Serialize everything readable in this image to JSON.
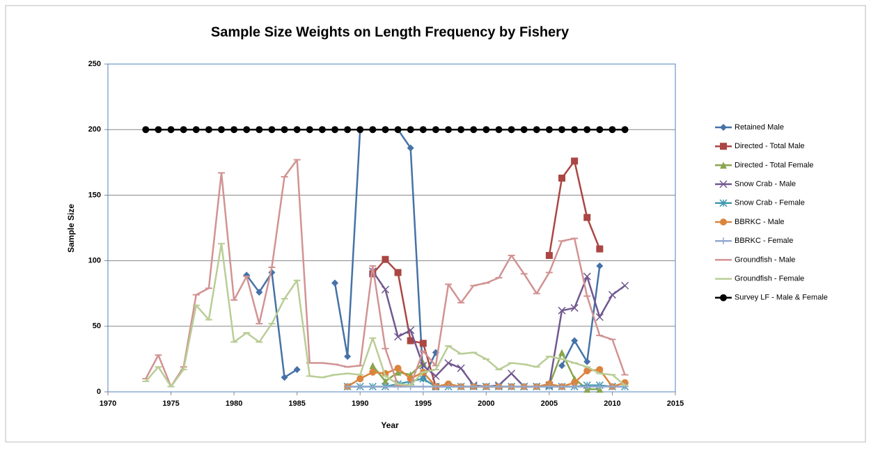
{
  "chart_data": {
    "type": "line",
    "title": "Sample Size Weights on Length Frequency by Fishery",
    "x_label": "Year",
    "y_label": "Sample Size",
    "xlim": [
      1970,
      2015
    ],
    "xticks": [
      1970,
      1975,
      1980,
      1985,
      1990,
      1995,
      2000,
      2005,
      2010,
      2015
    ],
    "ylim": [
      0,
      250
    ],
    "yticks": [
      0,
      50,
      100,
      150,
      200,
      250
    ],
    "grid": true,
    "legend": "right",
    "x": [
      1973,
      1974,
      1975,
      1976,
      1977,
      1978,
      1979,
      1980,
      1981,
      1982,
      1983,
      1984,
      1985,
      1986,
      1987,
      1988,
      1989,
      1990,
      1991,
      1992,
      1993,
      1994,
      1995,
      1996,
      1997,
      1998,
      1999,
      2000,
      2001,
      2002,
      2003,
      2004,
      2005,
      2006,
      2007,
      2008,
      2009,
      2010,
      2011
    ],
    "series": [
      {
        "name": "Retained Male",
        "color": "#4572a7",
        "marker": "diamond",
        "values": [
          null,
          null,
          null,
          null,
          null,
          null,
          null,
          null,
          89,
          76,
          91,
          11,
          17,
          null,
          null,
          83,
          27,
          200,
          200,
          200,
          200,
          186,
          10,
          30,
          null,
          null,
          null,
          null,
          null,
          null,
          null,
          null,
          null,
          20,
          39,
          23,
          96,
          null,
          null
        ]
      },
      {
        "name": "Directed - Total  Male",
        "color": "#aa4643",
        "marker": "square",
        "values": [
          null,
          null,
          null,
          null,
          null,
          null,
          null,
          null,
          null,
          null,
          null,
          null,
          null,
          null,
          null,
          null,
          null,
          null,
          90,
          101,
          91,
          39,
          37,
          4,
          null,
          null,
          null,
          null,
          null,
          null,
          null,
          null,
          104,
          163,
          176,
          133,
          109,
          null,
          null
        ]
      },
      {
        "name": "Directed - Total  Female",
        "color": "#89a54e",
        "marker": "triangle",
        "values": [
          null,
          null,
          null,
          null,
          null,
          null,
          null,
          null,
          null,
          null,
          null,
          null,
          null,
          null,
          null,
          null,
          null,
          null,
          20,
          8,
          15,
          13,
          22,
          null,
          null,
          null,
          null,
          null,
          null,
          null,
          null,
          null,
          5,
          30,
          10,
          2,
          2,
          null,
          null
        ]
      },
      {
        "name": "Snow Crab - Male",
        "color": "#71588f",
        "marker": "x",
        "values": [
          null,
          null,
          null,
          null,
          null,
          null,
          null,
          null,
          null,
          null,
          null,
          null,
          null,
          null,
          null,
          null,
          null,
          null,
          92,
          78,
          42,
          47,
          20,
          12,
          22,
          18,
          5,
          4,
          5,
          14,
          4,
          4,
          5,
          62,
          64,
          88,
          57,
          74,
          81
        ]
      },
      {
        "name": "Snow Crab - Female",
        "color": "#4198af",
        "marker": "star",
        "values": [
          null,
          null,
          null,
          null,
          null,
          null,
          null,
          null,
          null,
          null,
          null,
          null,
          null,
          null,
          null,
          null,
          4,
          4,
          4,
          4,
          6,
          8,
          10,
          4,
          4,
          4,
          4,
          4,
          4,
          4,
          4,
          4,
          4,
          4,
          4,
          5,
          5,
          4,
          4
        ]
      },
      {
        "name": "BBRKC - Male",
        "color": "#db843d",
        "marker": "circle",
        "values": [
          null,
          null,
          null,
          null,
          null,
          null,
          null,
          null,
          null,
          null,
          null,
          null,
          null,
          null,
          null,
          null,
          4,
          10,
          15,
          14,
          18,
          10,
          15,
          4,
          6,
          4,
          4,
          4,
          4,
          4,
          4,
          4,
          6,
          4,
          7,
          16,
          17,
          4,
          7
        ]
      },
      {
        "name": "BBRKC - Female",
        "color": "#93a9cf",
        "marker": "plus",
        "values": [
          null,
          null,
          null,
          null,
          null,
          null,
          null,
          null,
          null,
          null,
          null,
          null,
          null,
          null,
          null,
          null,
          4,
          4,
          4,
          4,
          4,
          4,
          4,
          4,
          4,
          4,
          4,
          4,
          4,
          4,
          4,
          4,
          4,
          4,
          4,
          4,
          4,
          4,
          4
        ]
      },
      {
        "name": "Groundfish - Male",
        "color": "#d19392",
        "marker": "dash",
        "values": [
          10,
          28,
          4,
          19,
          74,
          79,
          167,
          70,
          88,
          52,
          95,
          164,
          177,
          22,
          22,
          21,
          19,
          20,
          96,
          33,
          5,
          5,
          31,
          20,
          82,
          68,
          81,
          83,
          87,
          104,
          90,
          75,
          91,
          115,
          117,
          73,
          43,
          40,
          13
        ]
      },
      {
        "name": "Groundfish - Female",
        "color": "#b9cd96",
        "marker": "dash",
        "values": [
          8,
          19,
          4,
          17,
          66,
          55,
          113,
          38,
          45,
          38,
          52,
          71,
          85,
          12,
          11,
          13,
          14,
          13,
          41,
          12,
          6,
          5,
          15,
          17,
          35,
          29,
          30,
          25,
          17,
          22,
          21,
          19,
          27,
          25,
          22,
          19,
          14,
          13,
          5
        ]
      },
      {
        "name": "Survey LF - Male & Female",
        "color": "#000000",
        "marker": "circle",
        "values": [
          200,
          200,
          200,
          200,
          200,
          200,
          200,
          200,
          200,
          200,
          200,
          200,
          200,
          200,
          200,
          200,
          200,
          200,
          200,
          200,
          200,
          200,
          200,
          200,
          200,
          200,
          200,
          200,
          200,
          200,
          200,
          200,
          200,
          200,
          200,
          200,
          200,
          200,
          200
        ]
      }
    ]
  }
}
